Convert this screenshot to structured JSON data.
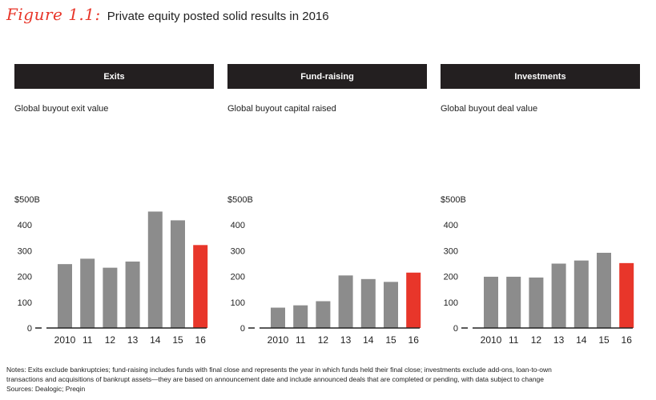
{
  "figure": {
    "label": "Figure 1.1:",
    "title": "Private equity posted solid results in 2016"
  },
  "colors": {
    "bar": "#8c8c8c",
    "highlight": "#e8362a",
    "header_bg": "#231f20",
    "axis": "#222222"
  },
  "chart_data": [
    {
      "type": "bar",
      "header": "Exits",
      "title": "Global buyout exit value",
      "categories": [
        "2010",
        "11",
        "12",
        "13",
        "14",
        "15",
        "16"
      ],
      "values": [
        248,
        269,
        234,
        258,
        452,
        418,
        322
      ],
      "highlight_index": 6,
      "ylim": [
        0,
        500
      ],
      "yticks": [
        "0",
        "100",
        "200",
        "300",
        "400",
        "$500B"
      ],
      "grid": false
    },
    {
      "type": "bar",
      "header": "Fund-raising",
      "title": "Global buyout capital raised",
      "categories": [
        "2010",
        "11",
        "12",
        "13",
        "14",
        "15",
        "16"
      ],
      "values": [
        79,
        88,
        104,
        204,
        190,
        179,
        215
      ],
      "highlight_index": 6,
      "ylim": [
        0,
        500
      ],
      "yticks": [
        "0",
        "100",
        "200",
        "300",
        "400",
        "$500B"
      ],
      "grid": false
    },
    {
      "type": "bar",
      "header": "Investments",
      "title": "Global buyout deal value",
      "categories": [
        "2010",
        "11",
        "12",
        "13",
        "14",
        "15",
        "16"
      ],
      "values": [
        199,
        199,
        196,
        250,
        262,
        292,
        252
      ],
      "highlight_index": 6,
      "ylim": [
        0,
        500
      ],
      "yticks": [
        "0",
        "100",
        "200",
        "300",
        "400",
        "$500B"
      ],
      "grid": false
    }
  ],
  "notes": {
    "line1": "Notes: Exits exclude bankruptcies; fund-raising includes funds with final close and represents the year in which funds held their final close; investments exclude add-ons, loan-to-own",
    "line2": "transactions and acquisitions of bankrupt assets—they are based on announcement date and include announced deals that are completed or pending, with data subject to change",
    "sources": "Sources: Dealogic; Preqin"
  }
}
